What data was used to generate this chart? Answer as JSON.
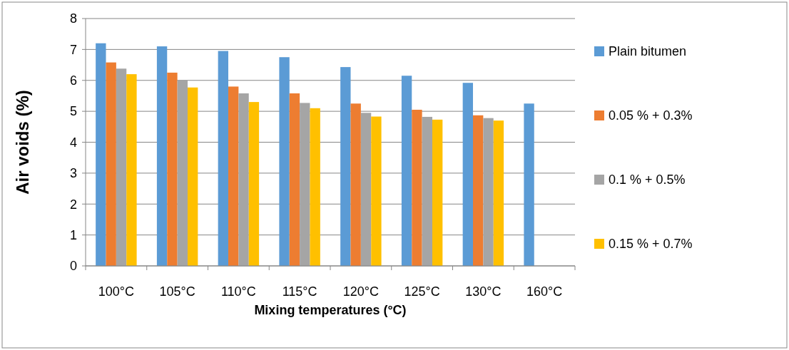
{
  "chart_data": {
    "type": "bar",
    "xlabel": "Mixing temperatures (°C)",
    "ylabel": "Air voids (%)",
    "categories": [
      "100°C",
      "105°C",
      "110°C",
      "115°C",
      "120°C",
      "125°C",
      "130°C",
      "160°C"
    ],
    "series": [
      {
        "name": "Plain bitumen",
        "color": "#5b9bd5",
        "values": [
          7.2,
          7.1,
          6.95,
          6.75,
          6.43,
          6.15,
          5.92,
          5.25
        ]
      },
      {
        "name": "0.05 % + 0.3%",
        "color": "#ed7d31",
        "values": [
          6.58,
          6.25,
          5.8,
          5.58,
          5.25,
          5.05,
          4.87,
          null
        ]
      },
      {
        "name": "0.1 % + 0.5%",
        "color": "#a5a5a5",
        "values": [
          6.38,
          6.0,
          5.58,
          5.27,
          4.95,
          4.82,
          4.78,
          null
        ]
      },
      {
        "name": "0.15 % + 0.7%",
        "color": "#ffc000",
        "values": [
          6.2,
          5.77,
          5.3,
          5.1,
          4.83,
          4.73,
          4.7,
          null
        ]
      }
    ],
    "ylim": [
      0,
      8
    ],
    "yticks": [
      0,
      1,
      2,
      3,
      4,
      5,
      6,
      7,
      8
    ],
    "grid": "y",
    "legend": "right"
  }
}
